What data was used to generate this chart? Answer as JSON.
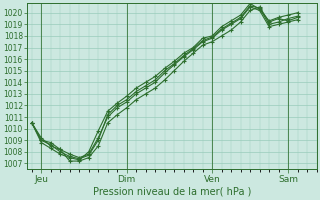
{
  "background_color": "#cce8e0",
  "grid_color": "#99ccbb",
  "line_color": "#2d6e2d",
  "text_color": "#2d6e2d",
  "xlabel": "Pression niveau de la mer( hPa )",
  "ylim": [
    1006.5,
    1020.8
  ],
  "yticks": [
    1007,
    1008,
    1009,
    1010,
    1011,
    1012,
    1013,
    1014,
    1015,
    1016,
    1017,
    1018,
    1019,
    1020
  ],
  "xtick_labels": [
    "Jeu",
    "Dim",
    "Ven",
    "Sam"
  ],
  "xtick_positions": [
    1,
    10,
    19,
    27
  ],
  "vline_positions": [
    1,
    10,
    19,
    27
  ],
  "xlim": [
    -0.5,
    30
  ],
  "series": [
    [
      1010.5,
      1009.0,
      1008.8,
      1008.2,
      1007.2,
      1007.2,
      1007.5,
      1008.5,
      1010.5,
      1011.2,
      1011.8,
      1012.5,
      1013.0,
      1013.5,
      1014.2,
      1015.0,
      1015.8,
      1016.5,
      1017.2,
      1017.5,
      1018.0,
      1018.5,
      1019.2,
      1020.2,
      1020.5,
      1019.2,
      1019.5,
      1019.3,
      1019.6
    ],
    [
      1010.5,
      1009.2,
      1008.5,
      1008.2,
      1007.8,
      1007.5,
      1007.8,
      1009.2,
      1011.0,
      1011.8,
      1012.3,
      1013.0,
      1013.5,
      1014.0,
      1014.8,
      1015.5,
      1016.2,
      1016.8,
      1017.5,
      1017.8,
      1018.5,
      1019.0,
      1019.5,
      1020.5,
      1020.2,
      1018.8,
      1019.0,
      1019.2,
      1019.4
    ],
    [
      1010.5,
      1008.8,
      1008.3,
      1007.8,
      1007.5,
      1007.3,
      1008.0,
      1009.8,
      1011.5,
      1012.2,
      1012.8,
      1013.5,
      1014.0,
      1014.5,
      1015.2,
      1015.8,
      1016.5,
      1017.0,
      1017.8,
      1018.0,
      1018.8,
      1019.3,
      1019.8,
      1020.8,
      1020.3,
      1019.3,
      1019.6,
      1019.8,
      1020.0
    ],
    [
      1010.5,
      1009.0,
      1008.6,
      1008.0,
      1007.6,
      1007.4,
      1007.7,
      1009.0,
      1011.2,
      1012.0,
      1012.5,
      1013.2,
      1013.7,
      1014.2,
      1015.0,
      1015.6,
      1016.3,
      1016.9,
      1017.6,
      1017.9,
      1018.6,
      1019.1,
      1019.6,
      1020.6,
      1020.4,
      1019.0,
      1019.2,
      1019.5,
      1019.7
    ]
  ],
  "marker": "+",
  "marker_size": 3.5,
  "line_width": 0.8,
  "tick_fontsize": 5.5,
  "xlabel_fontsize": 7.0,
  "xtick_fontsize": 6.5
}
